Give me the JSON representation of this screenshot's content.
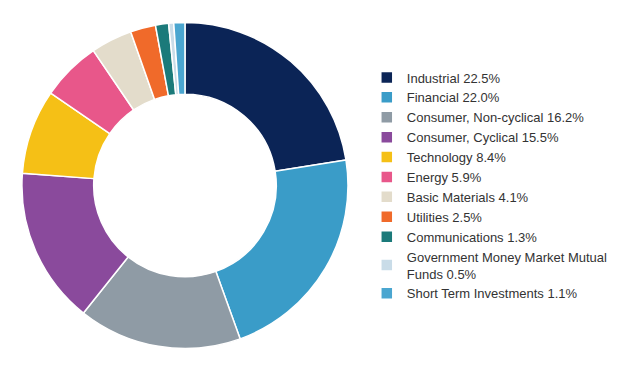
{
  "chart_data": {
    "type": "pie",
    "categories": [
      "Industrial 22.5%",
      "Financial 22.0%",
      "Consumer, Non-cyclical 16.2%",
      "Consumer, Cyclical 15.5%",
      "Technology 8.4%",
      "Energy 5.9%",
      "Basic Materials 4.1%",
      "Utilities 2.5%",
      "Communications 1.3%",
      "Government Money Market Mutual Funds 0.5%",
      "Short Term Investments 1.1%"
    ],
    "values": [
      22.5,
      22.0,
      16.2,
      15.5,
      8.4,
      5.9,
      4.1,
      2.5,
      1.3,
      0.5,
      1.1
    ],
    "colors": [
      "#0b2456",
      "#3a9cc8",
      "#8f9ba5",
      "#8a4a9c",
      "#f5c016",
      "#e8578a",
      "#e3dccb",
      "#f06a2a",
      "#1b7a7a",
      "#c9dce8",
      "#4aa6d0"
    ],
    "legend": "right",
    "data_labels": false
  }
}
